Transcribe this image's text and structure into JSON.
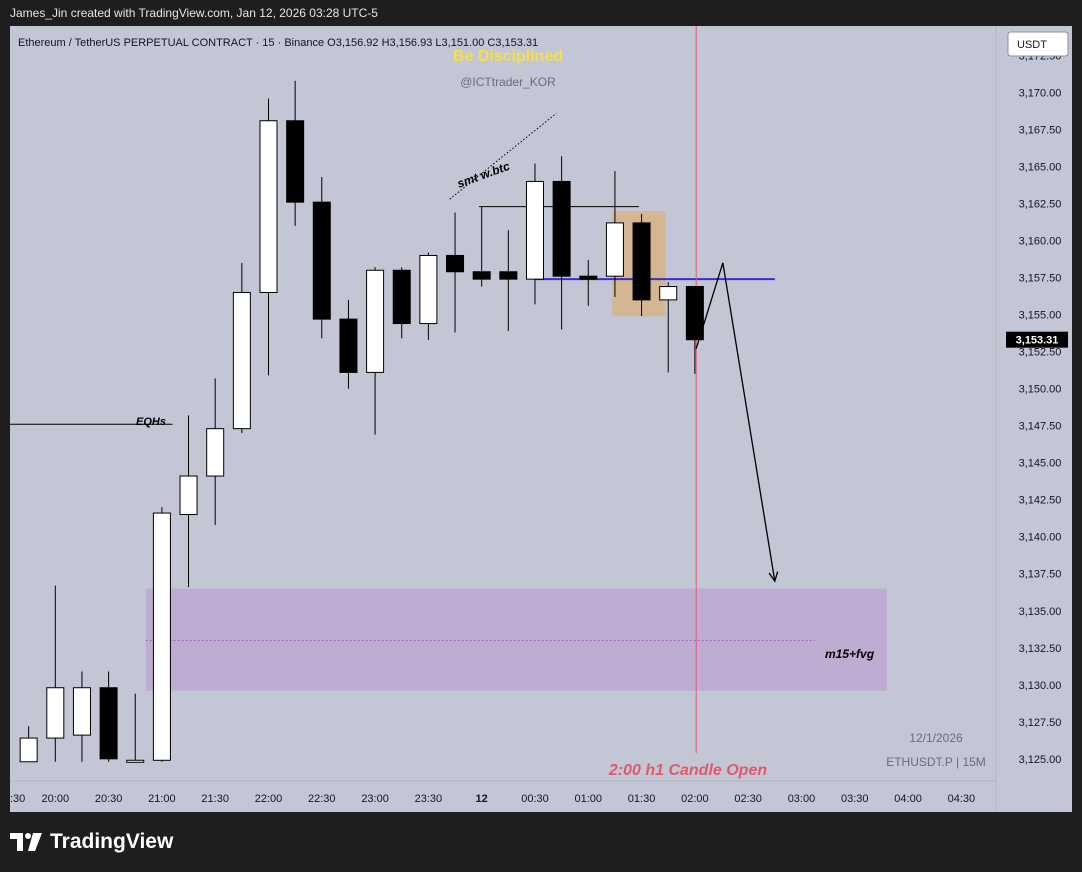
{
  "header": {
    "credit": "James_Jin created with TradingView.com, Jan 12, 2026 03:28 UTC-5"
  },
  "brand": {
    "name": "TradingView"
  },
  "colors": {
    "background": "#1e1e1e",
    "chart_bg": "#c2c6d5",
    "up_candle": "#ffffff",
    "down_candle": "#000000",
    "fvg_zone": "#bfa9d3",
    "order_block": "#d6b48c",
    "level_line": "#3d2cc9",
    "time_marker": "#e05a6a",
    "title_yellow": "#f5e04a"
  },
  "icons": [
    "tradingview-logo-icon"
  ],
  "chart_data": {
    "type": "candlestick",
    "title": "Ethereum / TetherUS PERPETUAL CONTRACT · 15 · Binance",
    "ohlc": {
      "open": "O3,156.92",
      "high": "H3,156.93",
      "low": "L3,151.00",
      "close": "C3,153.31"
    },
    "watermark_title": "Be Disciplined",
    "watermark_handle": "@ICTtrader_KOR",
    "currency_button": "USDT",
    "last_price": "3,153.31",
    "ylim": [
      3123.5,
      3174.5
    ],
    "y_ticks": [
      3125,
      3127.5,
      3130,
      3132.5,
      3135,
      3137.5,
      3140,
      3142.5,
      3145,
      3147.5,
      3150,
      3152.5,
      3155,
      3157.5,
      3160,
      3162.5,
      3165,
      3167.5,
      3170,
      3172.5
    ],
    "y_tick_labels": [
      "3,125.00",
      "3,127.50",
      "3,130.00",
      "3,132.50",
      "3,135.00",
      "3,137.50",
      "3,140.00",
      "3,142.50",
      "3,145.00",
      "3,147.50",
      "3,150.00",
      "3,152.50",
      "3,155.00",
      "3,157.50",
      "3,160.00",
      "3,162.50",
      "3,165.00",
      "3,167.50",
      "3,170.00",
      "3,172.50"
    ],
    "x_range": [
      -0.7,
      36.3
    ],
    "x_ticks": [
      {
        "x": -0.7,
        "label": ":30"
      },
      {
        "x": 1,
        "label": "20:00"
      },
      {
        "x": 3,
        "label": "20:30"
      },
      {
        "x": 5,
        "label": "21:00"
      },
      {
        "x": 7,
        "label": "21:30"
      },
      {
        "x": 9,
        "label": "22:00"
      },
      {
        "x": 11,
        "label": "22:30"
      },
      {
        "x": 13,
        "label": "23:00"
      },
      {
        "x": 15,
        "label": "23:30"
      },
      {
        "x": 17,
        "label": "12"
      },
      {
        "x": 19,
        "label": "00:30"
      },
      {
        "x": 21,
        "label": "01:00"
      },
      {
        "x": 23,
        "label": "01:30"
      },
      {
        "x": 25,
        "label": "02:00"
      },
      {
        "x": 27,
        "label": "02:30"
      },
      {
        "x": 29,
        "label": "03:00"
      },
      {
        "x": 31,
        "label": "03:30"
      },
      {
        "x": 33,
        "label": "04:00"
      },
      {
        "x": 35,
        "label": "04:30"
      }
    ],
    "candles": [
      {
        "o": 3124.8,
        "h": 3127.2,
        "l": 3124.8,
        "c": 3126.4
      },
      {
        "o": 3126.4,
        "h": 3136.7,
        "l": 3124.8,
        "c": 3129.8
      },
      {
        "o": 3126.6,
        "h": 3130.9,
        "l": 3124.8,
        "c": 3129.8
      },
      {
        "o": 3129.8,
        "h": 3130.9,
        "l": 3124.8,
        "c": 3125.0
      },
      {
        "o": 3124.8,
        "h": 3129.4,
        "l": 3124.8,
        "c": 3124.9
      },
      {
        "o": 3124.9,
        "h": 3142.0,
        "l": 3124.8,
        "c": 3141.6
      },
      {
        "o": 3141.5,
        "h": 3148.2,
        "l": 3136.6,
        "c": 3144.1
      },
      {
        "o": 3144.1,
        "h": 3150.7,
        "l": 3140.8,
        "c": 3147.3
      },
      {
        "o": 3147.3,
        "h": 3158.5,
        "l": 3147.0,
        "c": 3156.5
      },
      {
        "o": 3156.5,
        "h": 3169.6,
        "l": 3150.9,
        "c": 3168.1
      },
      {
        "o": 3168.1,
        "h": 3170.8,
        "l": 3161.0,
        "c": 3162.6
      },
      {
        "o": 3162.6,
        "h": 3164.3,
        "l": 3153.4,
        "c": 3154.7
      },
      {
        "o": 3154.7,
        "h": 3156.0,
        "l": 3150.0,
        "c": 3151.1
      },
      {
        "o": 3151.1,
        "h": 3158.2,
        "l": 3146.9,
        "c": 3158.0
      },
      {
        "o": 3158.0,
        "h": 3158.2,
        "l": 3153.4,
        "c": 3154.4
      },
      {
        "o": 3154.4,
        "h": 3159.2,
        "l": 3153.3,
        "c": 3159.0
      },
      {
        "o": 3159.0,
        "h": 3161.9,
        "l": 3153.8,
        "c": 3157.9
      },
      {
        "o": 3157.9,
        "h": 3162.3,
        "l": 3156.9,
        "c": 3157.4
      },
      {
        "o": 3157.9,
        "h": 3160.7,
        "l": 3153.9,
        "c": 3157.4
      },
      {
        "o": 3157.4,
        "h": 3165.2,
        "l": 3155.7,
        "c": 3164.0
      },
      {
        "o": 3164.0,
        "h": 3165.7,
        "l": 3154.0,
        "c": 3157.6
      },
      {
        "o": 3157.6,
        "h": 3158.7,
        "l": 3155.6,
        "c": 3157.4
      },
      {
        "o": 3157.6,
        "h": 3164.7,
        "l": 3156.2,
        "c": 3161.2
      },
      {
        "o": 3161.2,
        "h": 3161.8,
        "l": 3154.9,
        "c": 3156.0
      },
      {
        "o": 3156.0,
        "h": 3157.2,
        "l": 3151.1,
        "c": 3156.9
      },
      {
        "o": 3156.9,
        "h": 3156.93,
        "l": 3151.0,
        "c": 3153.31
      }
    ],
    "zones": [
      {
        "name": "fvg-zone",
        "x1": 4.4,
        "x2": 32.2,
        "y1": 3129.6,
        "y2": 3136.5
      },
      {
        "name": "order-block-zone",
        "x1": 21.9,
        "x2": 23.9,
        "y1": 3154.9,
        "y2": 3162.0
      }
    ],
    "lines": [
      {
        "name": "eqhs-line",
        "x1": -0.7,
        "x2": 5.4,
        "y": 3147.6
      },
      {
        "name": "smt-high-line",
        "x1": 16.9,
        "x2": 22.9,
        "y": 3162.3
      },
      {
        "name": "level-line",
        "x1": 19.0,
        "x2": 28.0,
        "y": 3157.4
      },
      {
        "name": "fvg-mid-line",
        "x1": 4.4,
        "x2": 29.5,
        "y": 3133.0
      }
    ],
    "smt_dotted": {
      "x1": 15.8,
      "y1": 3162.8,
      "x2": 19.8,
      "y2": 3168.6
    },
    "vertical_marker_x": 25.05,
    "projection": [
      {
        "x": 25.05,
        "y": 3152.7
      },
      {
        "x": 26.05,
        "y": 3158.5
      },
      {
        "x": 28.0,
        "y": 3137.0
      }
    ],
    "annotations": {
      "eqhs": "EQHs",
      "smt": "smt w.btc",
      "fvg": "m15+fvg",
      "candle_open": "2:00 h1 Candle Open",
      "date": "12/1/2026",
      "symbol_tf": "ETHUSDT.P | 15M"
    }
  }
}
